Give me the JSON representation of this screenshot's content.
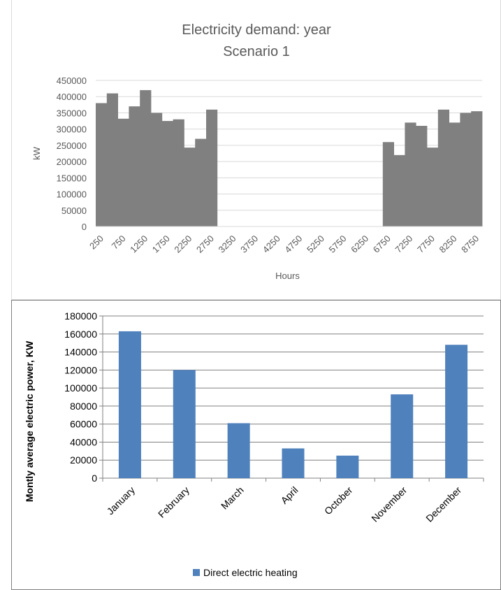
{
  "chart_data": [
    {
      "type": "bar",
      "title": "Electricity demand: year",
      "subtitle": "Scenario 1",
      "xlabel": "Hours",
      "ylabel": "kW",
      "ylim": [
        0,
        450000
      ],
      "y_ticks": [
        0,
        50000,
        100000,
        150000,
        200000,
        250000,
        300000,
        350000,
        400000,
        450000
      ],
      "x_tick_labels": [
        "250",
        "750",
        "1250",
        "1750",
        "2250",
        "2750",
        "3250",
        "3750",
        "4250",
        "4750",
        "5250",
        "5750",
        "6250",
        "6750",
        "7250",
        "7750",
        "8250",
        "8750"
      ],
      "bar_color": "#808080",
      "grid": true,
      "legend": "none",
      "x": [
        250,
        500,
        750,
        1000,
        1250,
        1500,
        1750,
        2000,
        2250,
        2500,
        2750,
        3000,
        3250,
        3500,
        3750,
        4000,
        4250,
        4500,
        4750,
        5000,
        5250,
        5500,
        5750,
        6000,
        6250,
        6500,
        6750,
        7000,
        7250,
        7500,
        7750,
        8000,
        8250,
        8500,
        8750
      ],
      "values": [
        380000,
        410000,
        332000,
        370000,
        420000,
        350000,
        325000,
        330000,
        243000,
        270000,
        360000,
        0,
        0,
        0,
        0,
        0,
        0,
        0,
        0,
        0,
        0,
        0,
        0,
        0,
        0,
        0,
        260000,
        220000,
        320000,
        310000,
        243000,
        360000,
        320000,
        350000,
        355000
      ]
    },
    {
      "type": "bar",
      "title": "",
      "xlabel": "",
      "ylabel": "Montly average electric power, KW",
      "ylim": [
        0,
        180000
      ],
      "y_ticks": [
        0,
        20000,
        40000,
        60000,
        80000,
        100000,
        120000,
        140000,
        160000,
        180000
      ],
      "categories": [
        "January",
        "February",
        "March",
        "April",
        "October",
        "November",
        "December"
      ],
      "series": [
        {
          "name": "Direct electric heating",
          "values": [
            163000,
            120000,
            61000,
            33000,
            25000,
            93000,
            148000
          ]
        }
      ],
      "bar_color": "#4f81bd",
      "grid": true,
      "legend": "bottom"
    }
  ]
}
